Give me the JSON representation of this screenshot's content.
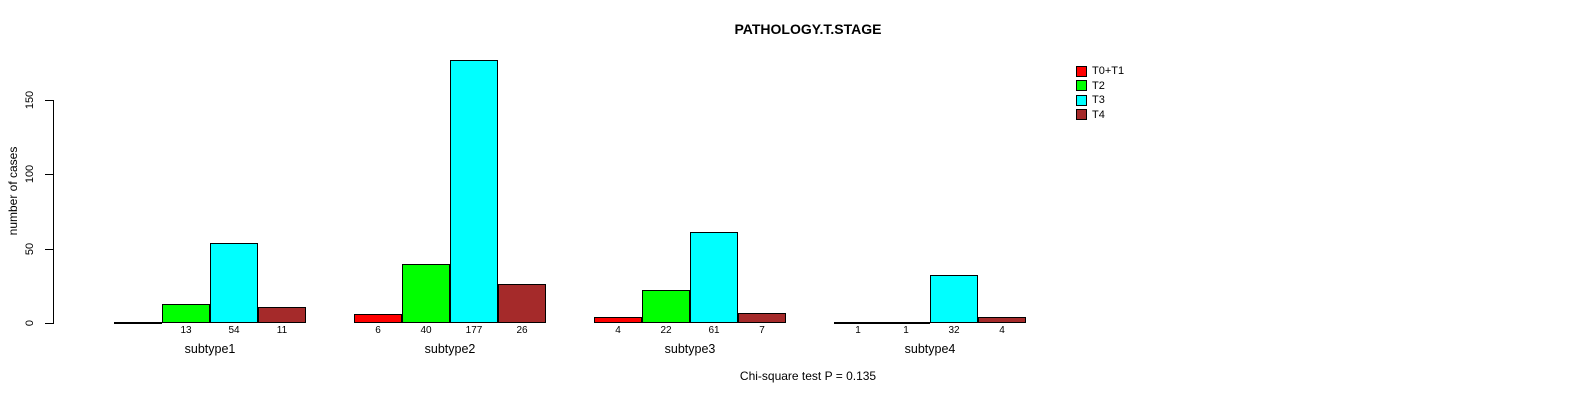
{
  "chart_data": {
    "type": "bar",
    "title": "PATHOLOGY.T.STAGE",
    "ylabel": "number of cases",
    "xlabel": "",
    "annotation": "Chi-square test P = 0.135",
    "categories": [
      "subtype1",
      "subtype2",
      "subtype3",
      "subtype4"
    ],
    "series": [
      {
        "name": "T0+T1",
        "color": "#FF0000",
        "values": [
          0,
          6,
          4,
          1
        ],
        "bar_labels": [
          "",
          "6",
          "4",
          "1"
        ]
      },
      {
        "name": "T2",
        "color": "#00FF00",
        "values": [
          13,
          40,
          22,
          1
        ],
        "bar_labels": [
          "13",
          "40",
          "22",
          "1"
        ]
      },
      {
        "name": "T3",
        "color": "#00FFFF",
        "values": [
          54,
          177,
          61,
          32
        ],
        "bar_labels": [
          "54",
          "177",
          "61",
          "32"
        ]
      },
      {
        "name": "T4",
        "color": "#A52A2A",
        "values": [
          11,
          26,
          7,
          4
        ],
        "bar_labels": [
          "11",
          "26",
          "7",
          "4"
        ]
      }
    ],
    "y_ticks": [
      "0",
      "50",
      "100",
      "150"
    ],
    "ylim": [
      0,
      185
    ],
    "grid": false,
    "legend_position": "top-right",
    "background_color": "#ffffff",
    "axis_color": "#000000"
  }
}
